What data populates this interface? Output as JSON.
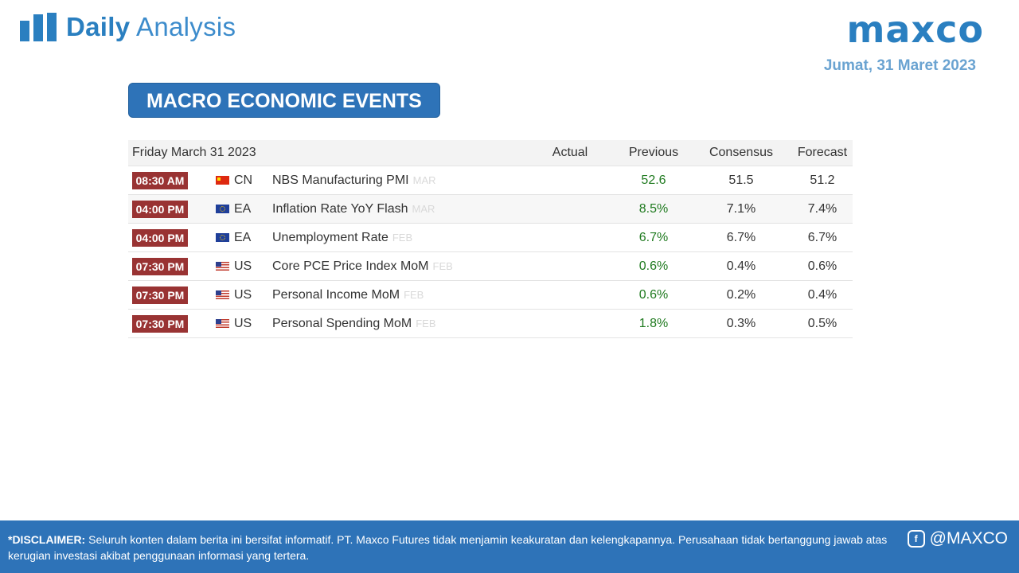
{
  "header": {
    "brand_bold": "Daily",
    "brand_light": "Analysis",
    "logo": "maxco",
    "date": "Jumat, 31 Maret 2023"
  },
  "section_title": "MACRO ECONOMIC EVENTS",
  "calendar": {
    "date_header": "Friday March 31 2023",
    "columns": {
      "actual": "Actual",
      "previous": "Previous",
      "consensus": "Consensus",
      "forecast": "Forecast"
    },
    "rows": [
      {
        "time": "08:30 AM",
        "flag": "cn-flag-icon",
        "country": "CN",
        "event": "NBS Manufacturing PMI",
        "ref": "MAR",
        "actual": "",
        "previous": "52.6",
        "consensus": "51.5",
        "forecast": "51.2"
      },
      {
        "time": "04:00 PM",
        "flag": "ea-flag-icon",
        "country": "EA",
        "event": "Inflation Rate YoY Flash",
        "ref": "MAR",
        "actual": "",
        "previous": "8.5%",
        "consensus": "7.1%",
        "forecast": "7.4%"
      },
      {
        "time": "04:00 PM",
        "flag": "ea-flag-icon",
        "country": "EA",
        "event": "Unemployment Rate",
        "ref": "FEB",
        "actual": "",
        "previous": "6.7%",
        "consensus": "6.7%",
        "forecast": "6.7%"
      },
      {
        "time": "07:30 PM",
        "flag": "us-flag-icon",
        "country": "US",
        "event": "Core PCE Price Index MoM",
        "ref": "FEB",
        "actual": "",
        "previous": "0.6%",
        "consensus": "0.4%",
        "forecast": "0.6%"
      },
      {
        "time": "07:30 PM",
        "flag": "us-flag-icon",
        "country": "US",
        "event": "Personal Income MoM",
        "ref": "FEB",
        "actual": "",
        "previous": "0.6%",
        "consensus": "0.2%",
        "forecast": "0.4%"
      },
      {
        "time": "07:30 PM",
        "flag": "us-flag-icon",
        "country": "US",
        "event": "Personal Spending MoM",
        "ref": "FEB",
        "actual": "",
        "previous": "1.8%",
        "consensus": "0.3%",
        "forecast": "0.5%"
      }
    ]
  },
  "footer": {
    "disclaimer_label": "*DISCLAIMER:",
    "disclaimer_text": "Seluruh konten dalam berita ini bersifat informatif. PT. Maxco Futures tidak menjamin keakuratan dan kelengkapannya. Perusahaan tidak bertanggung jawab atas kerugian investasi akibat penggunaan informasi yang tertera.",
    "social_handle": "@MAXCO"
  },
  "colors": {
    "brand_blue": "#2e73b8",
    "time_badge": "#993333",
    "previous_green": "#1f7a1f"
  }
}
